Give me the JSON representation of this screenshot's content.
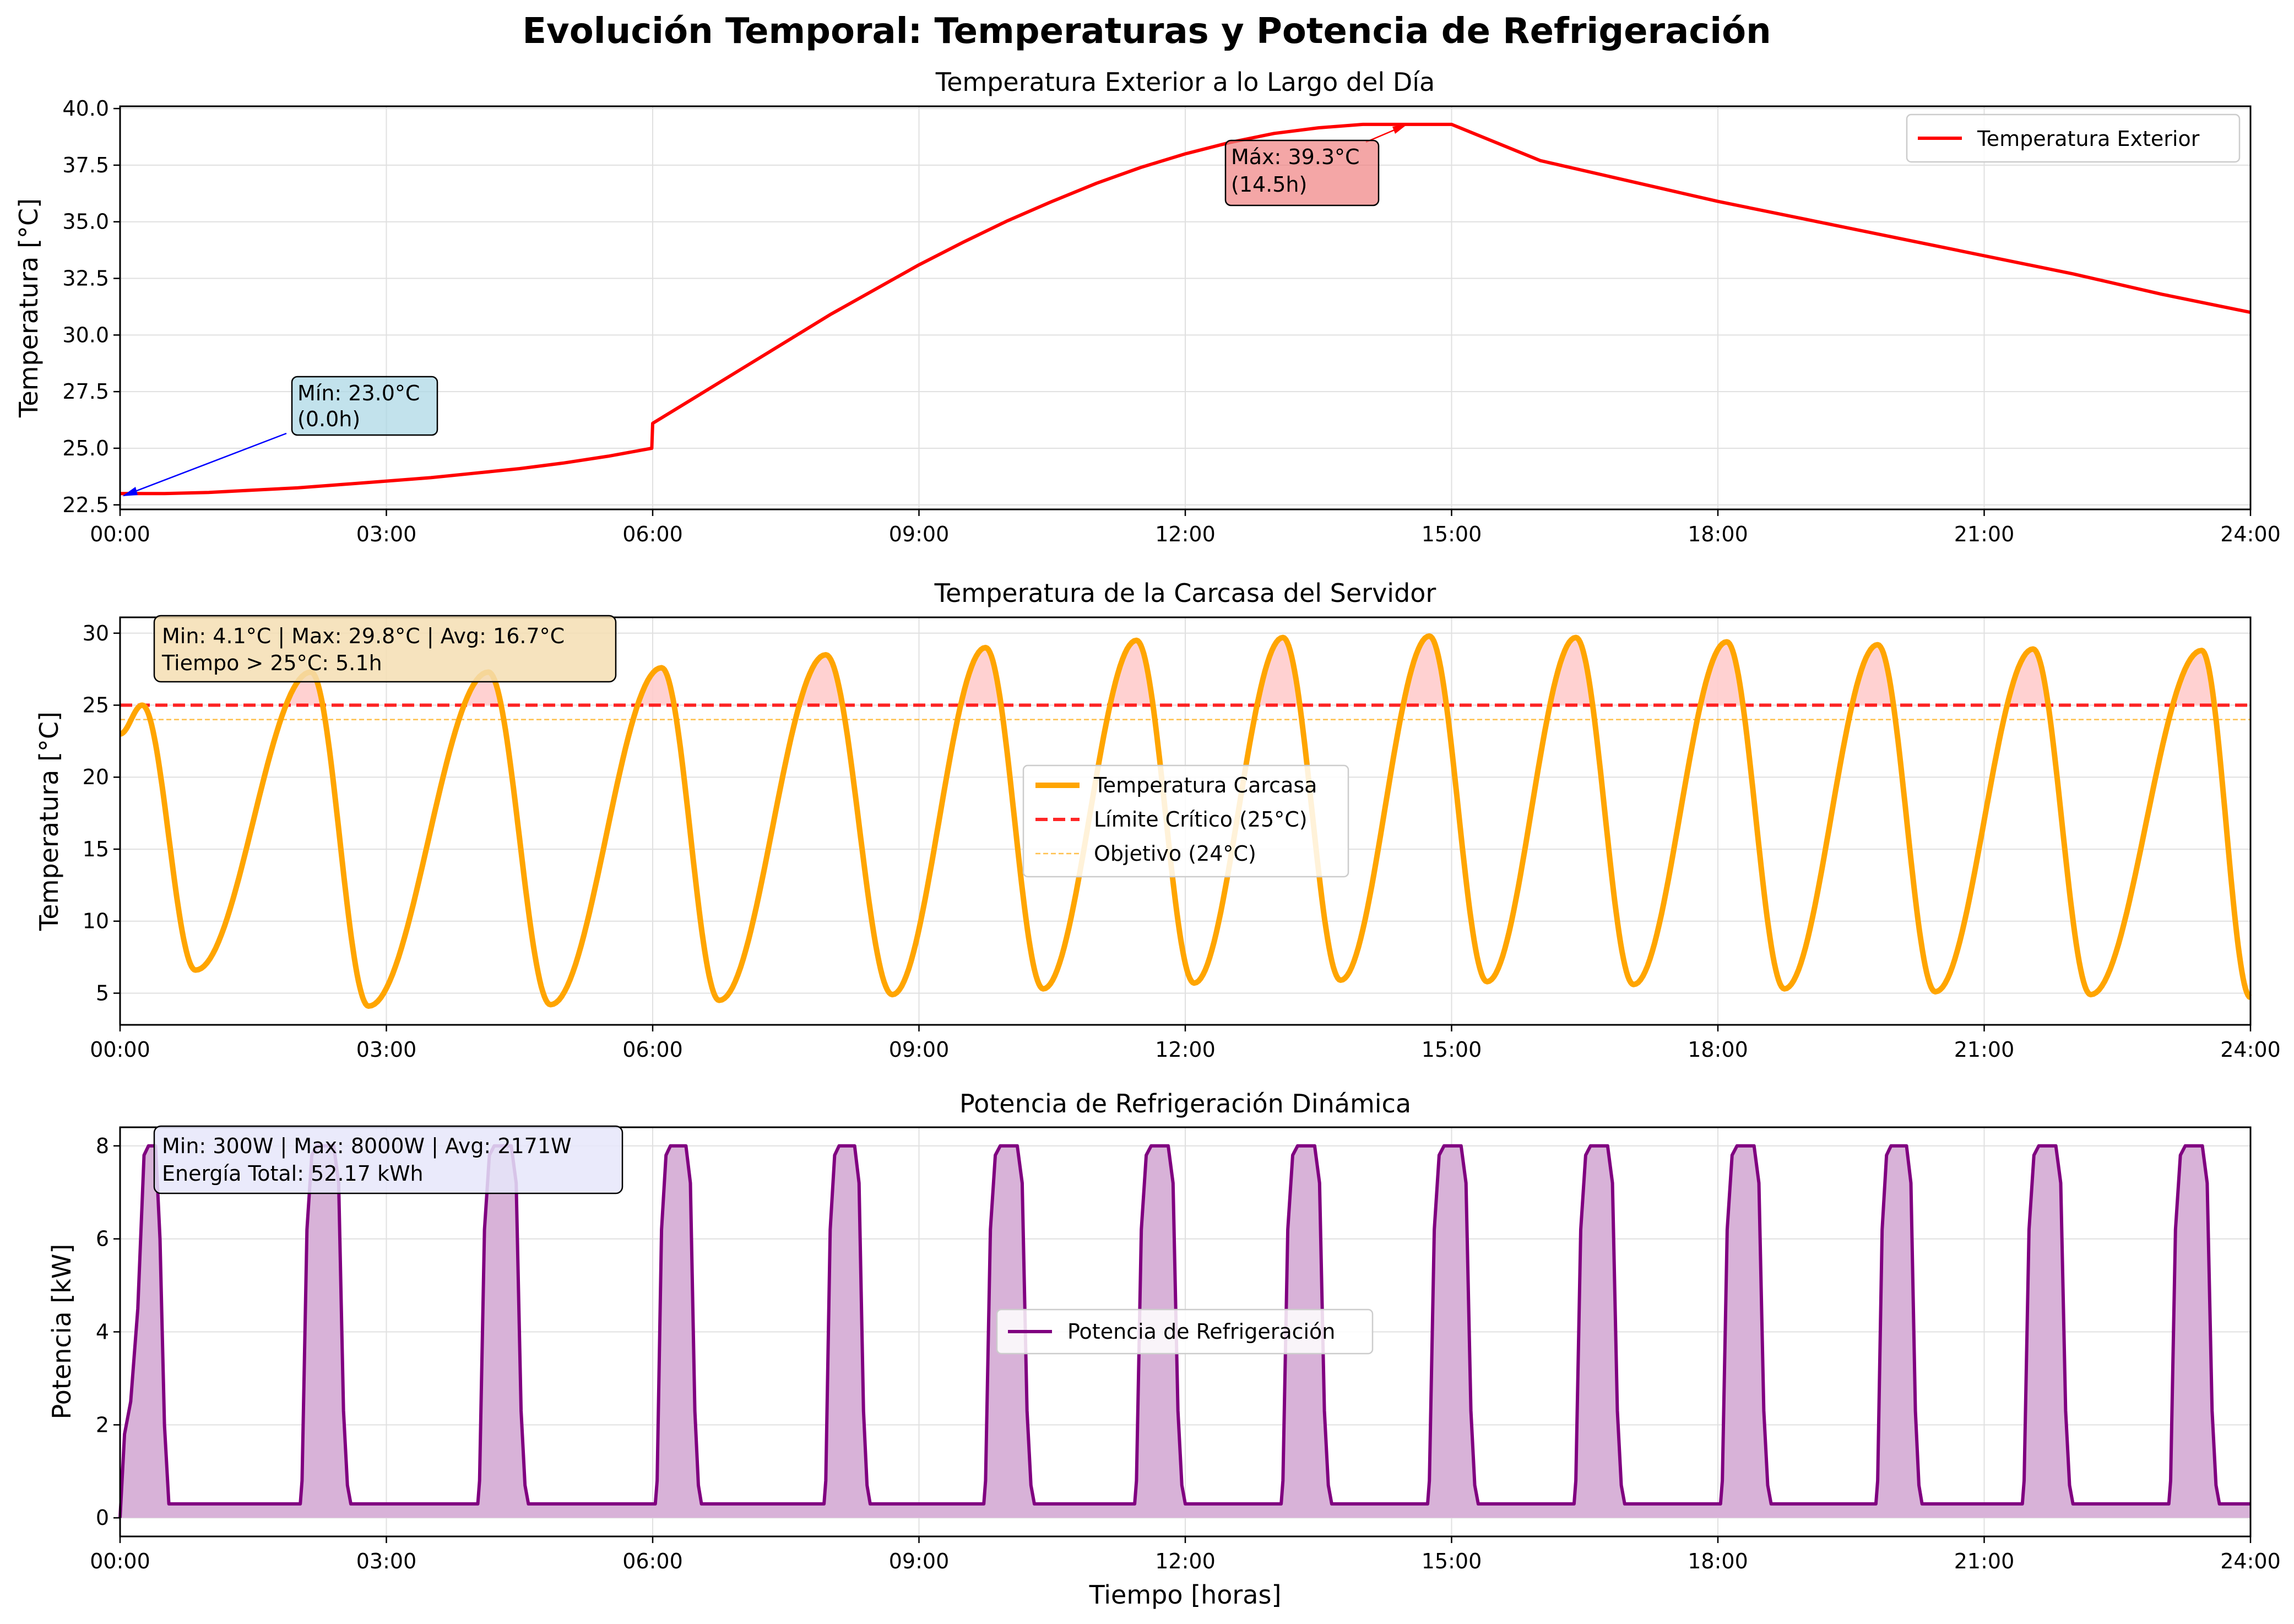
{
  "figure_title": "Evolución Temporal: Temperaturas y Potencia de Refrigeración",
  "xlabel": "Tiempo [horas]",
  "x_tick_labels": [
    "00:00",
    "03:00",
    "06:00",
    "09:00",
    "12:00",
    "15:00",
    "18:00",
    "21:00",
    "24:00"
  ],
  "colors": {
    "exterior": "#ff0000",
    "carcasa": "#ffa500",
    "limit": "#ff0000",
    "target": "#ffa500",
    "power": "#800080",
    "power_fill": "#d8b2d8",
    "over_fill": "#ffcccc",
    "grid": "#e0e0e0",
    "min_box": "#add8e6",
    "max_box": "#f08080",
    "stats_box_1": "#f5deb3",
    "stats_box_2": "#e6e6fa",
    "min_arrow": "#0000ff"
  },
  "chart_data": [
    {
      "type": "line",
      "title": "Temperatura Exterior a lo Largo del Día",
      "xlabel": "",
      "ylabel": "Temperatura [°C]",
      "xlim": [
        0,
        24
      ],
      "ylim": [
        22.3,
        40.1
      ],
      "x_ticks": [
        0,
        3,
        6,
        9,
        12,
        15,
        18,
        21,
        24
      ],
      "y_ticks": [
        22.5,
        25.0,
        27.5,
        30.0,
        32.5,
        35.0,
        37.5,
        40.0
      ],
      "y_tick_labels": [
        "22.5",
        "25.0",
        "27.5",
        "30.0",
        "32.5",
        "35.0",
        "37.5",
        "40.0"
      ],
      "grid": true,
      "legend_position": "upper right",
      "series": [
        {
          "name": "Temperatura Exterior",
          "x": [
            0,
            0.5,
            1,
            1.5,
            2,
            2.5,
            3,
            3.5,
            4,
            4.5,
            5,
            5.5,
            5.99,
            6.0,
            6.5,
            7,
            7.5,
            8,
            8.5,
            9,
            9.5,
            10,
            10.5,
            11,
            11.5,
            12,
            12.5,
            13,
            13.5,
            14,
            14.5,
            15,
            16,
            17,
            18,
            19,
            20,
            21,
            22,
            23,
            24
          ],
          "values": [
            23.0,
            23.0,
            23.05,
            23.15,
            23.25,
            23.4,
            23.55,
            23.7,
            23.9,
            24.1,
            24.35,
            24.65,
            25.0,
            26.1,
            27.3,
            28.5,
            29.7,
            30.9,
            32.0,
            33.1,
            34.1,
            35.05,
            35.9,
            36.7,
            37.4,
            38.0,
            38.5,
            38.9,
            39.15,
            39.3,
            39.3,
            39.3,
            37.7,
            36.8,
            35.9,
            35.1,
            34.3,
            33.5,
            32.7,
            31.8,
            31.0
          ]
        }
      ],
      "annotations": [
        {
          "text_line_1": "Mín: 23.0°C",
          "text_line_2": "(0.0h)",
          "point": [
            0.0,
            23.0
          ],
          "text_at": [
            2.0,
            27.0
          ]
        },
        {
          "text_line_1": "Máx: 39.3°C",
          "text_line_2": "(14.5h)",
          "point": [
            14.5,
            39.3
          ],
          "text_at": [
            12.5,
            37.6
          ]
        }
      ]
    },
    {
      "type": "line",
      "title": "Temperatura de la Carcasa del Servidor",
      "xlabel": "",
      "ylabel": "Temperatura [°C]",
      "xlim": [
        0,
        24
      ],
      "ylim": [
        2.8,
        31.1
      ],
      "x_ticks": [
        0,
        3,
        6,
        9,
        12,
        15,
        18,
        21,
        24
      ],
      "y_ticks": [
        5,
        10,
        15,
        20,
        25,
        30
      ],
      "y_tick_labels": [
        "5",
        "10",
        "15",
        "20",
        "25",
        "30"
      ],
      "grid": true,
      "legend_position": "center",
      "series": [
        {
          "name": "Temperatura Carcasa",
          "x": [
            0,
            0.25,
            0.85,
            2.15,
            2.8,
            4.15,
            4.85,
            6.1,
            6.75,
            7.95,
            8.7,
            9.75,
            10.4,
            11.45,
            12.1,
            13.1,
            13.75,
            14.75,
            15.4,
            16.4,
            17.05,
            18.1,
            18.75,
            19.8,
            20.45,
            21.55,
            22.2,
            23.45,
            24.0
          ],
          "values": [
            23.0,
            25.0,
            6.6,
            27.3,
            4.1,
            27.3,
            4.2,
            27.6,
            4.5,
            28.5,
            4.9,
            29.0,
            5.3,
            29.5,
            5.7,
            29.7,
            5.9,
            29.8,
            5.8,
            29.7,
            5.6,
            29.4,
            5.3,
            29.2,
            5.1,
            28.9,
            4.9,
            28.8,
            4.7
          ]
        },
        {
          "name": "Límite Crítico (25°C)",
          "x": [
            0,
            24
          ],
          "values": [
            25,
            25
          ]
        },
        {
          "name": "Objetivo (24°C)",
          "x": [
            0,
            24
          ],
          "values": [
            24,
            24
          ]
        }
      ],
      "stats_line_1": "Min: 4.1°C | Max: 29.8°C | Avg: 16.7°C",
      "stats_line_2": "Tiempo > 25°C: 5.1h"
    },
    {
      "type": "area",
      "title": "Potencia de Refrigeración Dinámica",
      "xlabel": "Tiempo [horas]",
      "ylabel": "Potencia [kW]",
      "xlim": [
        0,
        24
      ],
      "ylim": [
        -0.4,
        8.4
      ],
      "x_ticks": [
        0,
        3,
        6,
        9,
        12,
        15,
        18,
        21,
        24
      ],
      "y_ticks": [
        0,
        2,
        4,
        6,
        8
      ],
      "y_tick_labels": [
        "0",
        "2",
        "4",
        "6",
        "8"
      ],
      "grid": true,
      "legend_position": "center",
      "base_value": 0.3,
      "peak_value": 8.0,
      "first_pulse": {
        "x": [
          0,
          0.05,
          0.12,
          0.2,
          0.27,
          0.32,
          0.4,
          0.45,
          0.5,
          0.55
        ],
        "values": [
          0.0,
          1.8,
          2.5,
          4.5,
          7.8,
          8.0,
          8.0,
          6.0,
          2.0,
          0.3
        ]
      },
      "pulses": [
        {
          "start": 2.05,
          "end": 2.6
        },
        {
          "start": 4.05,
          "end": 4.6
        },
        {
          "start": 6.05,
          "end": 6.55
        },
        {
          "start": 7.95,
          "end": 8.45
        },
        {
          "start": 9.75,
          "end": 10.3
        },
        {
          "start": 11.45,
          "end": 12.0
        },
        {
          "start": 13.1,
          "end": 13.65
        },
        {
          "start": 14.75,
          "end": 15.3
        },
        {
          "start": 16.4,
          "end": 16.95
        },
        {
          "start": 18.05,
          "end": 18.6
        },
        {
          "start": 19.8,
          "end": 20.3
        },
        {
          "start": 21.45,
          "end": 22.0
        },
        {
          "start": 23.1,
          "end": 23.65
        }
      ],
      "series": [
        {
          "name": "Potencia de Refrigeración"
        }
      ],
      "stats_line_1": "Min: 300W | Max: 8000W | Avg: 2171W",
      "stats_line_2": "Energía Total: 52.17 kWh"
    }
  ]
}
